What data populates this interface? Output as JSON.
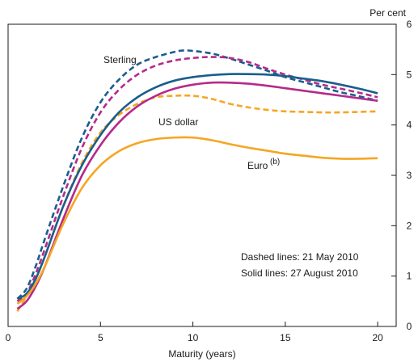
{
  "chart_data": {
    "type": "line",
    "y_unit_label": "Per cent",
    "xlabel": "Maturity (years)",
    "xlim": [
      0,
      21
    ],
    "ylim": [
      0,
      6
    ],
    "x_ticks": [
      0,
      5,
      10,
      15,
      20
    ],
    "y_ticks": [
      0,
      1,
      2,
      3,
      4,
      5,
      6
    ],
    "grid": false,
    "colors": {
      "sterling": "#1a5e8c",
      "us_dollar": "#b52a8a",
      "euro": "#f5a623"
    },
    "annotations": {
      "sterling": "Sterling",
      "us_dollar": "US dollar",
      "euro": "Euro",
      "euro_superscript": "(b)",
      "dashed_note": "Dashed lines:  21 May 2010",
      "solid_note": "Solid lines:  27 August 2010"
    },
    "series": [
      {
        "style": "dashed",
        "color_key": "sterling",
        "points": [
          [
            0.5,
            0.55
          ],
          [
            1,
            0.75
          ],
          [
            1.5,
            1.2
          ],
          [
            2,
            1.75
          ],
          [
            3,
            2.8
          ],
          [
            4,
            3.75
          ],
          [
            5,
            4.45
          ],
          [
            6,
            4.9
          ],
          [
            7,
            5.2
          ],
          [
            8,
            5.35
          ],
          [
            9,
            5.45
          ],
          [
            9.5,
            5.48
          ],
          [
            10,
            5.47
          ],
          [
            11,
            5.42
          ],
          [
            12,
            5.32
          ],
          [
            13,
            5.2
          ],
          [
            14,
            5.08
          ],
          [
            15,
            4.95
          ],
          [
            16,
            4.85
          ],
          [
            17,
            4.75
          ],
          [
            18,
            4.65
          ],
          [
            19,
            4.57
          ],
          [
            20,
            4.48
          ]
        ]
      },
      {
        "style": "dashed",
        "color_key": "us_dollar",
        "points": [
          [
            0.5,
            0.5
          ],
          [
            1,
            0.65
          ],
          [
            1.5,
            1.05
          ],
          [
            2,
            1.55
          ],
          [
            3,
            2.6
          ],
          [
            4,
            3.55
          ],
          [
            5,
            4.25
          ],
          [
            6,
            4.7
          ],
          [
            7,
            5.0
          ],
          [
            8,
            5.18
          ],
          [
            9,
            5.28
          ],
          [
            10,
            5.33
          ],
          [
            11,
            5.35
          ],
          [
            12,
            5.33
          ],
          [
            13,
            5.25
          ],
          [
            14,
            5.12
          ],
          [
            15,
            5.0
          ],
          [
            16,
            4.9
          ],
          [
            17,
            4.8
          ],
          [
            18,
            4.72
          ],
          [
            19,
            4.64
          ],
          [
            20,
            4.55
          ]
        ]
      },
      {
        "style": "dashed",
        "color_key": "euro",
        "points": [
          [
            0.5,
            0.3
          ],
          [
            1,
            0.6
          ],
          [
            1.5,
            0.95
          ],
          [
            2,
            1.4
          ],
          [
            3,
            2.4
          ],
          [
            4,
            3.25
          ],
          [
            5,
            3.85
          ],
          [
            6,
            4.2
          ],
          [
            7,
            4.42
          ],
          [
            8,
            4.55
          ],
          [
            9,
            4.58
          ],
          [
            10,
            4.58
          ],
          [
            11,
            4.52
          ],
          [
            12,
            4.42
          ],
          [
            13,
            4.35
          ],
          [
            14,
            4.3
          ],
          [
            15,
            4.27
          ],
          [
            16,
            4.26
          ],
          [
            17,
            4.25
          ],
          [
            18,
            4.25
          ],
          [
            19,
            4.26
          ],
          [
            20,
            4.27
          ]
        ]
      },
      {
        "style": "solid",
        "color_key": "sterling",
        "points": [
          [
            0.5,
            0.55
          ],
          [
            1,
            0.65
          ],
          [
            1.5,
            0.95
          ],
          [
            2,
            1.4
          ],
          [
            3,
            2.4
          ],
          [
            4,
            3.2
          ],
          [
            5,
            3.8
          ],
          [
            6,
            4.25
          ],
          [
            7,
            4.55
          ],
          [
            8,
            4.75
          ],
          [
            9,
            4.88
          ],
          [
            10,
            4.95
          ],
          [
            11,
            4.99
          ],
          [
            12,
            5.01
          ],
          [
            13,
            5.01
          ],
          [
            14,
            5.0
          ],
          [
            15,
            4.97
          ],
          [
            16,
            4.92
          ],
          [
            17,
            4.87
          ],
          [
            18,
            4.8
          ],
          [
            19,
            4.72
          ],
          [
            20,
            4.63
          ]
        ]
      },
      {
        "style": "solid",
        "color_key": "us_dollar",
        "points": [
          [
            0.5,
            0.35
          ],
          [
            1,
            0.5
          ],
          [
            1.5,
            0.8
          ],
          [
            2,
            1.2
          ],
          [
            3,
            2.15
          ],
          [
            4,
            3.0
          ],
          [
            5,
            3.6
          ],
          [
            6,
            4.05
          ],
          [
            7,
            4.37
          ],
          [
            8,
            4.58
          ],
          [
            9,
            4.72
          ],
          [
            10,
            4.8
          ],
          [
            11,
            4.84
          ],
          [
            12,
            4.84
          ],
          [
            13,
            4.82
          ],
          [
            14,
            4.78
          ],
          [
            15,
            4.73
          ],
          [
            16,
            4.68
          ],
          [
            17,
            4.63
          ],
          [
            18,
            4.58
          ],
          [
            19,
            4.53
          ],
          [
            20,
            4.48
          ]
        ]
      },
      {
        "style": "solid",
        "color_key": "euro",
        "points": [
          [
            0.5,
            0.45
          ],
          [
            1,
            0.6
          ],
          [
            1.5,
            0.85
          ],
          [
            2,
            1.2
          ],
          [
            3,
            2.05
          ],
          [
            4,
            2.75
          ],
          [
            5,
            3.2
          ],
          [
            6,
            3.48
          ],
          [
            7,
            3.64
          ],
          [
            8,
            3.72
          ],
          [
            9,
            3.75
          ],
          [
            10,
            3.75
          ],
          [
            11,
            3.7
          ],
          [
            12,
            3.62
          ],
          [
            13,
            3.55
          ],
          [
            14,
            3.49
          ],
          [
            15,
            3.43
          ],
          [
            16,
            3.39
          ],
          [
            17,
            3.35
          ],
          [
            18,
            3.33
          ],
          [
            19,
            3.33
          ],
          [
            20,
            3.34
          ]
        ]
      }
    ]
  }
}
